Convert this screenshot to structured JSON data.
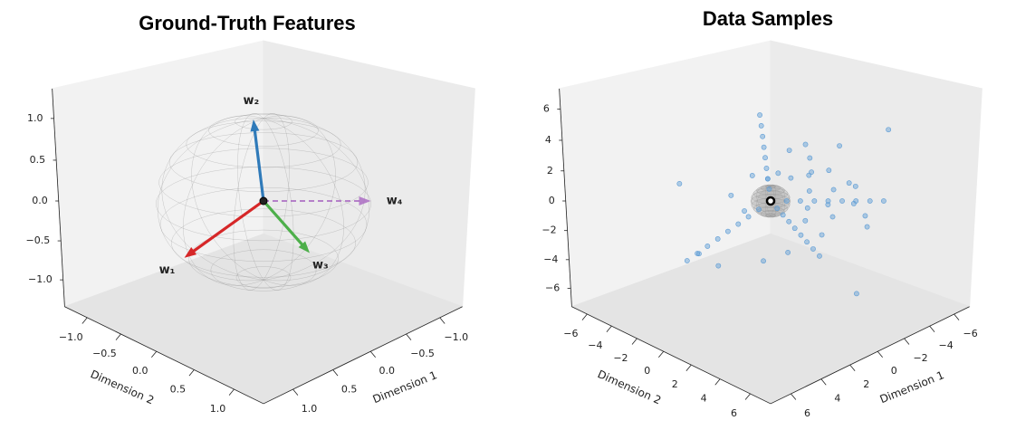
{
  "chart_data": [
    {
      "type": "vector3d",
      "title": "Ground-Truth Features",
      "xlabel": "Dimension 1",
      "ylabel": "Dimension 2",
      "xlim": [
        -1.35,
        1.35
      ],
      "ylim": [
        -1.35,
        1.35
      ],
      "zlim": [
        -1.35,
        1.35
      ],
      "xticks": [
        {
          "value": -1,
          "label": "−1.0"
        },
        {
          "value": -0.5,
          "label": "−0.5"
        },
        {
          "value": 0,
          "label": "0.0"
        },
        {
          "value": 0.5,
          "label": "0.5"
        },
        {
          "value": 1,
          "label": "1.0"
        }
      ],
      "yticks": [
        {
          "value": -1,
          "label": "−1.0"
        },
        {
          "value": -0.5,
          "label": "−0.5"
        },
        {
          "value": 0,
          "label": "0.0"
        },
        {
          "value": 0.5,
          "label": "0.5"
        },
        {
          "value": 1,
          "label": "1.0"
        }
      ],
      "zticks": [
        {
          "value": -1,
          "label": "−1.0"
        },
        {
          "value": -0.5,
          "label": "−0.5"
        },
        {
          "value": 0,
          "label": "0.0"
        },
        {
          "value": 0.5,
          "label": "0.5"
        },
        {
          "value": 1,
          "label": "1.0"
        }
      ],
      "vectors": [
        {
          "name": "w₁",
          "color": "#d62728",
          "values": [
            0.6,
            -0.45,
            -0.66
          ]
        },
        {
          "name": "w₂",
          "color": "#2f7ab9",
          "values": [
            0.08,
            -0.05,
            0.995
          ]
        },
        {
          "name": "w₃",
          "color": "#4daf4a",
          "values": [
            0.2,
            0.78,
            -0.3
          ]
        },
        {
          "name": "w₄",
          "color": "#a865c0",
          "values": [
            -0.707,
            0.707,
            0
          ],
          "linestyle": "dashed"
        }
      ]
    },
    {
      "type": "scatter3d",
      "title": "Data Samples",
      "xlabel": "Dimension 1",
      "ylabel": "Dimension 2",
      "xlim": [
        -7.3,
        7.3
      ],
      "ylim": [
        -7.3,
        7.3
      ],
      "zlim": [
        -7.3,
        7.3
      ],
      "xticks": [
        {
          "value": -6,
          "label": "−6"
        },
        {
          "value": -4,
          "label": "−4"
        },
        {
          "value": -2,
          "label": "−2"
        },
        0,
        2,
        4,
        6
      ],
      "yticks": [
        {
          "value": -6,
          "label": "−6"
        },
        {
          "value": -4,
          "label": "−4"
        },
        {
          "value": -2,
          "label": "−2"
        },
        0,
        2,
        4,
        6
      ],
      "zticks": [
        {
          "value": -6,
          "label": "−6"
        },
        {
          "value": -4,
          "label": "−4"
        },
        {
          "value": -2,
          "label": "−2"
        },
        0,
        2,
        4,
        6
      ],
      "series": [
        {
          "color": "#5b9bd5",
          "x": [
            0.48,
            0.9,
            1.32,
            1.74,
            2.16,
            2.58,
            3.0,
            3.42,
            0.06,
            0.12,
            0.18,
            0.23,
            0.29,
            0.34,
            0.4,
            0.46,
            0.16,
            0.3,
            0.44,
            0.58,
            0.72,
            0.86,
            1,
            1.14,
            -0.57,
            -1.06,
            -1.56,
            -2.05,
            -2.55,
            -3.04,
            -3.54,
            -4.03,
            -1.2,
            -2,
            -0.5,
            -2.5,
            -1.8,
            0.4,
            -3,
            -1,
            -2.2,
            0.8,
            -3.5,
            -1.5,
            1.2,
            -0.8,
            -2.8,
            0.5,
            1.6,
            -4,
            -1.4,
            2,
            -0.2,
            -3.2,
            1,
            -2.6,
            0.3,
            -4.5,
            1.8,
            3,
            -1,
            2.5,
            -5,
            4
          ],
          "y": [
            -0.36,
            -0.68,
            -0.99,
            -1.31,
            -1.62,
            -1.94,
            -2.25,
            -2.57,
            -0.04,
            -0.08,
            -0.11,
            -0.15,
            -0.18,
            -0.22,
            -0.25,
            -0.29,
            0.62,
            1.17,
            1.72,
            2.26,
            2.81,
            3.35,
            3.9,
            4.45,
            0.57,
            1.06,
            1.56,
            2.05,
            2.55,
            3.04,
            3.54,
            4.03,
            1.5,
            0.8,
            2.2,
            2,
            2.6,
            1.8,
            1.2,
            3,
            0.3,
            0.6,
            2.5,
            1,
            2.4,
            2.8,
            3.2,
            -0.8,
            -1.2,
            1,
            4,
            1.5,
            1.1,
            -0.2,
            3.5,
            4.2,
            -1.6,
            3.8,
            -2,
            -3.5,
            5,
            3,
            2,
            -1
          ],
          "z": [
            -0.53,
            -0.99,
            -1.45,
            -1.91,
            -2.38,
            -2.84,
            -3.3,
            -3.76,
            0.8,
            1.49,
            2.19,
            2.89,
            3.58,
            4.28,
            4.98,
            5.67,
            -0.24,
            -0.45,
            -0.66,
            -0.87,
            -1.08,
            -1.29,
            -1.5,
            -1.71,
            0,
            0,
            0,
            0,
            0,
            0,
            0,
            0,
            1.8,
            2.5,
            1.2,
            0.6,
            -0.8,
            2.2,
            1.5,
            0.4,
            3.2,
            1.9,
            -0.5,
            -1.5,
            -2.2,
            -1.6,
            1.1,
            1.6,
            0.5,
            2.8,
            2,
            -2.8,
            3.6,
            0.9,
            1,
            -1.2,
            -1.1,
            4.5,
            -4.5,
            1,
            -4.8,
            3.5,
            -2,
            -2.5
          ]
        }
      ]
    }
  ]
}
